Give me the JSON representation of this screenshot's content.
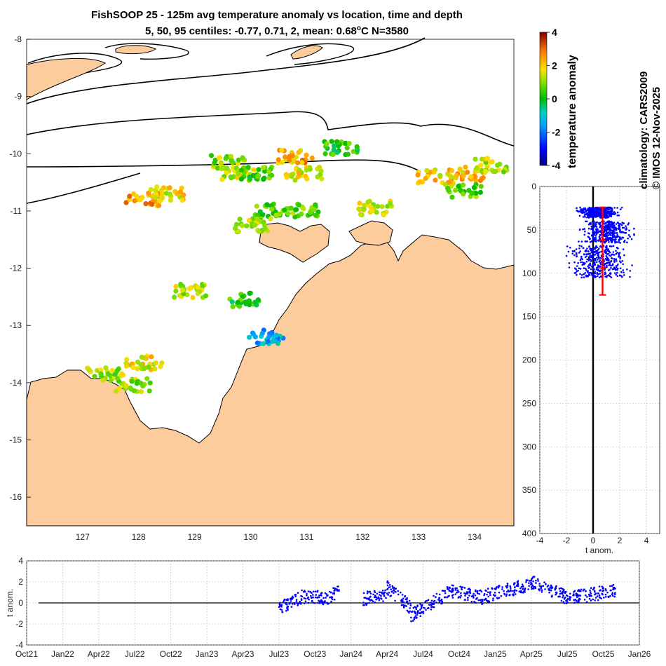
{
  "title_line1": "FishSOOP 25 - 125m avg temperature anomaly vs location, time and depth",
  "title_line2_prefix": "5, 50, 95 centiles: -0.77, 0.71, 2, mean: 0.68",
  "title_line2_sup": "o",
  "title_line2_suffix": "C N=3580",
  "colorbar": {
    "label": "temperature anomaly",
    "ticks": [
      "4",
      "2",
      "0",
      "-2",
      "-4"
    ],
    "range": [
      -4,
      4
    ]
  },
  "credits": {
    "line1": "climatology: CARS2009",
    "line2": "© IMOS 12-Nov-2025"
  },
  "colors": {
    "land": "#fccc9c",
    "profile": "#0000ff",
    "centile_bar": "#ff0000"
  },
  "chart_data": [
    {
      "type": "scatter",
      "name": "map",
      "xlabel": "",
      "ylabel": "",
      "x_ticks": [
        "127",
        "128",
        "129",
        "130",
        "131",
        "132",
        "133",
        "134"
      ],
      "y_ticks": [
        "-8",
        "-9",
        "-10",
        "-11",
        "-12",
        "-13",
        "-14",
        "-15",
        "-16"
      ],
      "xlim": [
        126,
        134.7
      ],
      "ylim": [
        -16.5,
        -8
      ],
      "clusters": [
        {
          "lon": 129.6,
          "lat": -10.15,
          "anom": 1.0
        },
        {
          "lon": 129.8,
          "lat": -10.35,
          "anom": 1.5
        },
        {
          "lon": 130.1,
          "lat": -10.35,
          "anom": 0.5
        },
        {
          "lon": 130.8,
          "lat": -10.05,
          "anom": 2.3
        },
        {
          "lon": 130.95,
          "lat": -10.35,
          "anom": 1.6
        },
        {
          "lon": 131.6,
          "lat": -9.9,
          "anom": 0.3
        },
        {
          "lon": 128.1,
          "lat": -10.8,
          "anom": 2.4
        },
        {
          "lon": 128.5,
          "lat": -10.7,
          "anom": 1.8
        },
        {
          "lon": 130.4,
          "lat": -11.0,
          "anom": 0.6
        },
        {
          "lon": 130.9,
          "lat": -11.0,
          "anom": 0.7
        },
        {
          "lon": 132.2,
          "lat": -10.95,
          "anom": 1.5
        },
        {
          "lon": 130.05,
          "lat": -11.25,
          "anom": 1.2
        },
        {
          "lon": 133.3,
          "lat": -10.4,
          "anom": 1.9
        },
        {
          "lon": 133.9,
          "lat": -10.35,
          "anom": 2.2
        },
        {
          "lon": 134.3,
          "lat": -10.2,
          "anom": 1.4
        },
        {
          "lon": 133.8,
          "lat": -10.65,
          "anom": 0.7
        },
        {
          "lon": 128.9,
          "lat": -12.4,
          "anom": 1.3
        },
        {
          "lon": 128.1,
          "lat": -13.65,
          "anom": 1.7
        },
        {
          "lon": 127.9,
          "lat": -14.05,
          "anom": 1.0
        },
        {
          "lon": 127.4,
          "lat": -13.85,
          "anom": 1.2
        },
        {
          "lon": 129.95,
          "lat": -12.55,
          "anom": 0.2
        },
        {
          "lon": 130.3,
          "lat": -13.2,
          "anom": -1.4
        }
      ]
    },
    {
      "type": "scatter",
      "name": "depth_profile",
      "xlabel": "t anom.",
      "ylabel": "",
      "x_ticks": [
        "-4",
        "-2",
        "0",
        "2",
        "4"
      ],
      "y_ticks": [
        "0",
        "50",
        "100",
        "150",
        "200",
        "250",
        "300",
        "350",
        "400"
      ],
      "xlim": [
        -4,
        5
      ],
      "ylim": [
        0,
        400
      ],
      "point_bands": [
        {
          "depth_min": 24,
          "depth_max": 36,
          "x_min": -1.6,
          "x_max": 2.3
        },
        {
          "depth_min": 40,
          "depth_max": 65,
          "x_min": -1.4,
          "x_max": 3.4
        },
        {
          "depth_min": 68,
          "depth_max": 105,
          "x_min": -2.4,
          "x_max": 3.4
        }
      ],
      "median_bar": {
        "x": 0.71,
        "depth_top": 24,
        "depth_bottom": 125,
        "markers": [
          24,
          62,
          94,
          125
        ]
      }
    },
    {
      "type": "scatter",
      "name": "time_series",
      "xlabel": "",
      "ylabel": "t anom.",
      "x_ticks": [
        "Oct21",
        "Jan22",
        "Apr22",
        "Jul22",
        "Oct22",
        "Jan23",
        "Apr23",
        "Jul23",
        "Oct23",
        "Jan24",
        "Apr24",
        "Jul24",
        "Oct24",
        "Jan25",
        "Apr25",
        "Jul25",
        "Oct25",
        "Jan26"
      ],
      "y_ticks": [
        "4",
        "2",
        "0",
        "-2",
        "-4"
      ],
      "ylim": [
        -4,
        4
      ],
      "segments": [
        {
          "start": "Jul23",
          "end": "Sep23",
          "anom_from": -0.5,
          "anom_to": 0.6
        },
        {
          "start": "Sep23",
          "end": "Nov23",
          "anom_from": 0.6,
          "anom_to": 0.5
        },
        {
          "start": "Nov23",
          "end": "Dec23",
          "anom_from": 0.5,
          "anom_to": 1.0
        },
        {
          "start": "Feb24",
          "end": "Apr24",
          "anom_from": 0.4,
          "anom_to": 0.8
        },
        {
          "start": "Apr24",
          "end": "Jun24",
          "anom_from": 1.5,
          "anom_to": -0.5
        },
        {
          "start": "Jun24",
          "end": "Sep24",
          "anom_from": -1.2,
          "anom_to": 0.8
        },
        {
          "start": "Sep24",
          "end": "Dec24",
          "anom_from": 1.2,
          "anom_to": 0.5
        },
        {
          "start": "Dec24",
          "end": "Apr25",
          "anom_from": 0.6,
          "anom_to": 1.8
        },
        {
          "start": "Apr25",
          "end": "Jul25",
          "anom_from": 2.0,
          "anom_to": 0.5
        },
        {
          "start": "Jul25",
          "end": "Nov25",
          "anom_from": 0.4,
          "anom_to": 1.2
        }
      ]
    }
  ]
}
